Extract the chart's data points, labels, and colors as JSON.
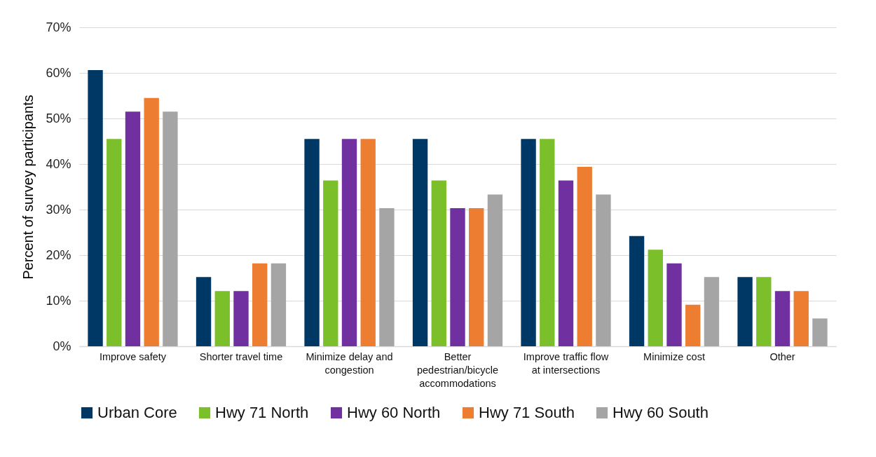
{
  "chart_data": {
    "type": "bar",
    "ylabel": "Percent of survey participants",
    "categories": [
      "Improve safety",
      "Shorter travel time",
      "Minimize delay and congestion",
      "Better pedestrian/bicycle accommodations",
      "Improve traffic flow at intersections",
      "Minimize cost",
      "Other"
    ],
    "series": [
      {
        "name": "Urban Core",
        "color": "#003865",
        "values": [
          60.6,
          15.2,
          45.5,
          45.5,
          45.5,
          24.2,
          15.2
        ]
      },
      {
        "name": "Hwy 71 North",
        "color": "#7bbf2a",
        "values": [
          45.5,
          12.1,
          36.4,
          36.4,
          45.5,
          21.2,
          15.2
        ]
      },
      {
        "name": "Hwy 60 North",
        "color": "#7030a0",
        "values": [
          51.5,
          12.1,
          45.5,
          30.3,
          36.4,
          18.2,
          12.1
        ]
      },
      {
        "name": "Hwy 71 South",
        "color": "#ed7d31",
        "values": [
          54.5,
          18.2,
          45.5,
          30.3,
          39.4,
          9.1,
          12.1
        ]
      },
      {
        "name": "Hwy 60 South",
        "color": "#a5a5a5",
        "values": [
          51.5,
          18.2,
          30.3,
          33.3,
          33.3,
          15.2,
          6.1
        ]
      }
    ],
    "ylim": [
      0,
      70
    ],
    "yticks": [
      {
        "value": 0,
        "label": "0%"
      },
      {
        "value": 10,
        "label": "10%"
      },
      {
        "value": 20,
        "label": "20%"
      },
      {
        "value": 30,
        "label": "30%"
      },
      {
        "value": 40,
        "label": "40%"
      },
      {
        "value": 50,
        "label": "50%"
      },
      {
        "value": 60,
        "label": "60%"
      },
      {
        "value": 70,
        "label": "70%"
      }
    ],
    "grid": "y",
    "legend": "bottom"
  }
}
